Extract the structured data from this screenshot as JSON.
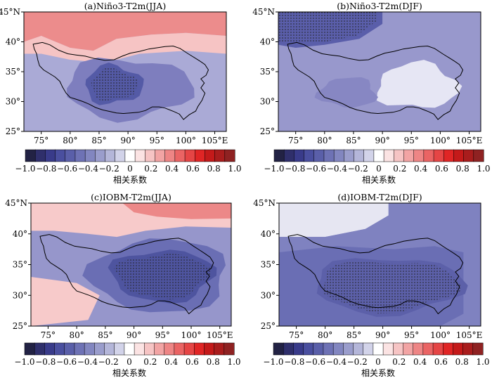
{
  "panels": [
    {
      "title": "(a)Niño3-T2m(JJA)",
      "colorbar_caption": "相关系数",
      "field": {
        "base": "#aaaad6",
        "warm": "#ec8c8c",
        "warm_light": "#f6c4c4",
        "cool_mid": "#7e7ebe",
        "cool_deep": "#545aa6"
      }
    },
    {
      "title": "(b)Niño3-T2m(DJF)",
      "colorbar_caption": "相关系数",
      "field": {
        "base": "#9898cc",
        "warm": "#e6e6f4",
        "warm_light": "#e6e6f4",
        "cool_mid": "#8787c3",
        "cool_deep": "#5a5eaa"
      }
    },
    {
      "title": "(c)IOBM-T2m(JJA)",
      "colorbar_caption": "相关系数",
      "field": {
        "base": "#9696cb",
        "warm": "#ec8888",
        "warm_light": "#f7caca",
        "cool_mid": "#6a6eb4",
        "cool_deep": "#4e549f"
      }
    },
    {
      "title": "(d)IOBM-T2m(DJF)",
      "colorbar_caption": "相关系数",
      "field": {
        "base": "#7f82c0",
        "warm": "#e6e6f2",
        "warm_light": "#e6e6f2",
        "cool_mid": "#6a6eb4",
        "cool_deep": "#5c60a9"
      }
    }
  ],
  "axes": {
    "lat_labels": [
      "45°N",
      "40°",
      "35°",
      "30°",
      "25°"
    ],
    "lat_values": [
      45,
      40,
      35,
      30,
      25
    ],
    "lon_labels": [
      "75°",
      "80°",
      "85°",
      "90°",
      "95°",
      "100°",
      "105°E"
    ],
    "lon_values": [
      75,
      80,
      85,
      90,
      95,
      100,
      105
    ],
    "lon_range": [
      72,
      107
    ],
    "lat_range": [
      25,
      45
    ]
  },
  "colorbar": {
    "tick_labels": [
      "−1.0",
      "−0.8",
      "−0.6",
      "−0.4",
      "−0.2",
      "0",
      "0.2",
      "0.4",
      "0.6",
      "0.8",
      "1.0"
    ],
    "tick_values": [
      -1.0,
      -0.8,
      -0.6,
      -0.4,
      -0.2,
      0,
      0.2,
      0.4,
      0.6,
      0.8,
      1.0
    ],
    "colors": [
      "#222244",
      "#2f2f6b",
      "#393b8a",
      "#4a4f9f",
      "#5a5fa9",
      "#6e72b5",
      "#8286c0",
      "#9a9dcc",
      "#b4b6d9",
      "#d2d3e9",
      "#ffffff",
      "#fbe3e3",
      "#f6c4c4",
      "#f2a4a4",
      "#ee8585",
      "#ea6464",
      "#e54545",
      "#e02525",
      "#c41a1a",
      "#a91d1d",
      "#8f2222"
    ]
  }
}
